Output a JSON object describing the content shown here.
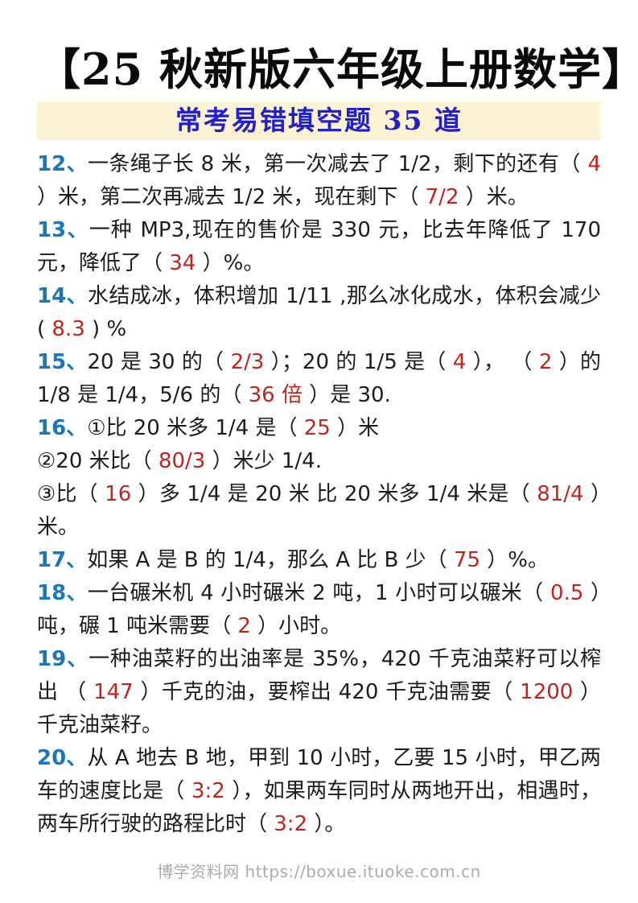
{
  "page": {
    "title": "【25 秋新版六年级上册数学】",
    "subtitle": "常考易错填空题 35 道",
    "footer": "博学资料网 https://boxue.ituoke.com.cn"
  },
  "colors": {
    "question_number_blue": "#1878be",
    "answer_red": "#c2231d",
    "subtitle_blue": "#2220cd",
    "banner_background": "#fcf2d4",
    "body_text": "#1c1c1c",
    "footer_gray": "#ababab"
  },
  "questions": [
    {
      "id": "12",
      "segments": [
        {
          "t": "num",
          "v": "12、"
        },
        {
          "t": "text",
          "v": "一条绳子长 8 米，第一次减去了 1/2，剩下的还有（ "
        },
        {
          "t": "ans",
          "v": "4"
        },
        {
          "t": "text",
          "v": " ）米，第二次再减去 1/2 米，现在剩下（ "
        },
        {
          "t": "ans",
          "v": "7/2"
        },
        {
          "t": "text",
          "v": " ）米。"
        }
      ]
    },
    {
      "id": "13",
      "segments": [
        {
          "t": "num",
          "v": "13、"
        },
        {
          "t": "text",
          "v": "一种 MP3,现在的售价是 330 元，比去年降低了 170 元，降低了（ "
        },
        {
          "t": "ans",
          "v": "34"
        },
        {
          "t": "text",
          "v": " ）%。"
        }
      ]
    },
    {
      "id": "14",
      "segments": [
        {
          "t": "num",
          "v": "14、"
        },
        {
          "t": "text",
          "v": "水结成冰，体积增加 1/11 ,那么冰化成水，体积会减少( "
        },
        {
          "t": "ans",
          "v": "8.3"
        },
        {
          "t": "text",
          "v": " ) %"
        }
      ]
    },
    {
      "id": "15",
      "segments": [
        {
          "t": "num",
          "v": "15、"
        },
        {
          "t": "text",
          "v": "20 是 30 的（ "
        },
        {
          "t": "ans",
          "v": "2/3"
        },
        {
          "t": "text",
          "v": " ）；20 的 1/5 是（ "
        },
        {
          "t": "ans",
          "v": "4"
        },
        {
          "t": "text",
          "v": " ）， （ "
        },
        {
          "t": "ans",
          "v": "2"
        },
        {
          "t": "text",
          "v": " ）的 1/8 是 1/4，5/6 的（ "
        },
        {
          "t": "ans",
          "v": "36 倍"
        },
        {
          "t": "text",
          "v": " ）是 30."
        }
      ]
    },
    {
      "id": "16",
      "segments": [
        {
          "t": "num",
          "v": "16、"
        },
        {
          "t": "text",
          "v": "①比 20 米多 1/4 是（ "
        },
        {
          "t": "ans",
          "v": "25"
        },
        {
          "t": "text",
          "v": " ）米"
        },
        {
          "t": "br"
        },
        {
          "t": "text",
          "v": "②20 米比（ "
        },
        {
          "t": "ans",
          "v": "80/3"
        },
        {
          "t": "text",
          "v": " ）米少 1/4."
        },
        {
          "t": "br"
        },
        {
          "t": "text",
          "v": "③比（ "
        },
        {
          "t": "ans",
          "v": "16"
        },
        {
          "t": "text",
          "v": " ）多 1/4 是 20 米 比 20 米多 1/4 米是（ "
        },
        {
          "t": "ans",
          "v": "81/4"
        },
        {
          "t": "text",
          "v": " ）米。"
        }
      ]
    },
    {
      "id": "17",
      "segments": [
        {
          "t": "num",
          "v": "17、"
        },
        {
          "t": "text",
          "v": "如果 A 是 B 的 1/4，那么 A 比 B 少（ "
        },
        {
          "t": "ans",
          "v": "75"
        },
        {
          "t": "text",
          "v": " ）%。"
        }
      ]
    },
    {
      "id": "18",
      "segments": [
        {
          "t": "num",
          "v": "18、"
        },
        {
          "t": "text",
          "v": "一台碾米机 4 小时碾米 2 吨，1 小时可以碾米（ "
        },
        {
          "t": "ans",
          "v": "0.5"
        },
        {
          "t": "text",
          "v": " ）吨，碾 1 吨米需要（ "
        },
        {
          "t": "ans",
          "v": "2"
        },
        {
          "t": "text",
          "v": " ）小时。"
        }
      ]
    },
    {
      "id": "19",
      "segments": [
        {
          "t": "num",
          "v": "19、"
        },
        {
          "t": "text",
          "v": "一种油菜籽的出油率是 35%，420 千克油菜籽可以榨出 （ "
        },
        {
          "t": "ans",
          "v": "147"
        },
        {
          "t": "text",
          "v": " ）千克的油，要榨出 420 千克油需要（ "
        },
        {
          "t": "ans",
          "v": "1200"
        },
        {
          "t": "text",
          "v": " ）千克油菜籽。"
        }
      ]
    },
    {
      "id": "20",
      "segments": [
        {
          "t": "num",
          "v": "20、"
        },
        {
          "t": "text",
          "v": "从 A 地去 B 地，甲到 10 小时，乙要 15 小时，甲乙两车的速度比是（ "
        },
        {
          "t": "ans",
          "v": "3:2"
        },
        {
          "t": "text",
          "v": " ），如果两车同时从两地开出，相遇时，两车所行驶的路程比时（ "
        },
        {
          "t": "ans",
          "v": "3:2"
        },
        {
          "t": "text",
          "v": " ）。"
        }
      ]
    }
  ]
}
